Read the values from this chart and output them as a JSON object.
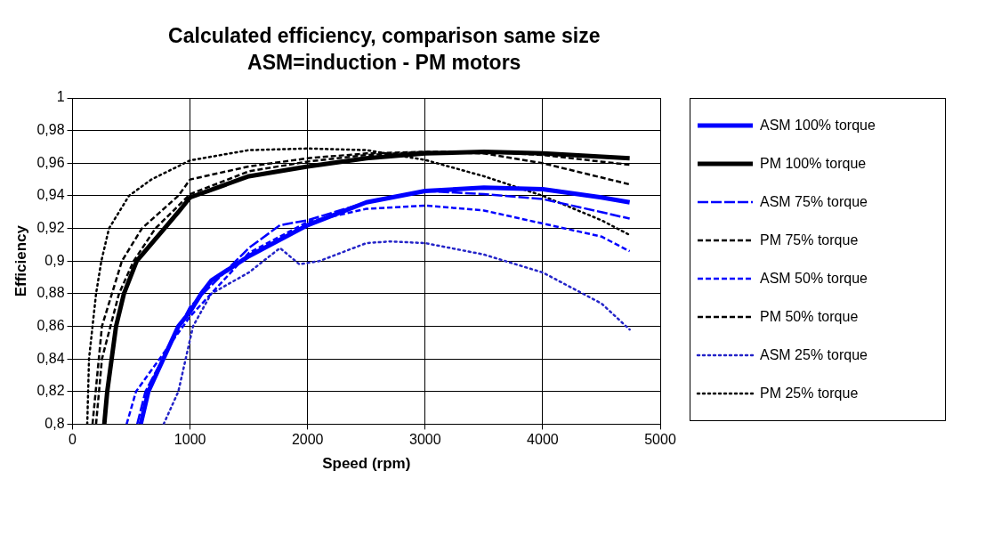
{
  "chart_data": {
    "type": "line",
    "title": "Calculated efficiency, comparison same size\nASM=induction - PM motors",
    "xlabel": "Speed (rpm)",
    "ylabel": "Efficiency",
    "xlim": [
      0,
      5000
    ],
    "xticks": [
      0,
      1000,
      2000,
      3000,
      4000,
      5000
    ],
    "ylim": [
      0.8,
      1
    ],
    "yticks": [
      {
        "value": 0.8,
        "label": "0,8"
      },
      {
        "value": 0.82,
        "label": "0,82"
      },
      {
        "value": 0.84,
        "label": "0,84"
      },
      {
        "value": 0.86,
        "label": "0,86"
      },
      {
        "value": 0.88,
        "label": "0,88"
      },
      {
        "value": 0.9,
        "label": "0,9"
      },
      {
        "value": 0.92,
        "label": "0,92"
      },
      {
        "value": 0.94,
        "label": "0,94"
      },
      {
        "value": 0.96,
        "label": "0,96"
      },
      {
        "value": 0.98,
        "label": "0,98"
      },
      {
        "value": 1,
        "label": "1"
      }
    ],
    "grid": true,
    "legend": "right",
    "marker": "none",
    "series": [
      {
        "name": "ASM 100% torque",
        "color": "#0000ff",
        "line_style": "solid",
        "x": [
          580,
          645,
          900,
          1000,
          1095,
          1180,
          1500,
          2000,
          2500,
          3000,
          3500,
          4000,
          4500,
          4740
        ],
        "values": [
          0.8,
          0.82,
          0.86,
          0.869,
          0.88,
          0.888,
          0.903,
          0.922,
          0.936,
          0.943,
          0.945,
          0.944,
          0.939,
          0.936
        ]
      },
      {
        "name": "PM 100% torque",
        "color": "#000000",
        "line_style": "solid",
        "x": [
          270,
          295,
          370,
          437,
          546,
          900,
          1000,
          1500,
          2000,
          2500,
          3000,
          3500,
          4000,
          4740
        ],
        "values": [
          0.8,
          0.82,
          0.86,
          0.88,
          0.9,
          0.93,
          0.939,
          0.952,
          0.958,
          0.963,
          0.966,
          0.967,
          0.966,
          0.963
        ]
      },
      {
        "name": "ASM 75% torque",
        "color": "#0000ff",
        "line_style": "dashed",
        "x": [
          550,
          620,
          1000,
          1500,
          1765,
          2000,
          2500,
          3000,
          3500,
          4000,
          4500,
          4740
        ],
        "values": [
          0.8,
          0.82,
          0.872,
          0.908,
          0.922,
          0.925,
          0.936,
          0.943,
          0.941,
          0.938,
          0.93,
          0.926
        ]
      },
      {
        "name": "PM 75% torque",
        "color": "#000000",
        "line_style": "dashed",
        "x": [
          200,
          250,
          395,
          520,
          705,
          1000,
          1500,
          2000,
          2500,
          3000,
          3500,
          4000,
          4740
        ],
        "values": [
          0.8,
          0.84,
          0.88,
          0.9,
          0.92,
          0.941,
          0.955,
          0.961,
          0.965,
          0.967,
          0.967,
          0.965,
          0.959
        ]
      },
      {
        "name": "ASM 50% torque",
        "color": "#0000ff",
        "line_style": "dashed",
        "x": [
          460,
          540,
          1000,
          1500,
          2000,
          2500,
          3000,
          3500,
          4000,
          4500,
          4740
        ],
        "values": [
          0.8,
          0.82,
          0.866,
          0.905,
          0.924,
          0.932,
          0.934,
          0.931,
          0.923,
          0.915,
          0.906
        ]
      },
      {
        "name": "PM 50% torque",
        "color": "#000000",
        "line_style": "dashed",
        "x": [
          170,
          250,
          420,
          590,
          900,
          1000,
          1500,
          2000,
          2500,
          3000,
          3500,
          4000,
          4740
        ],
        "values": [
          0.8,
          0.86,
          0.9,
          0.92,
          0.94,
          0.95,
          0.958,
          0.963,
          0.966,
          0.967,
          0.966,
          0.96,
          0.947
        ]
      },
      {
        "name": "ASM 25% torque",
        "color": "#2424c8",
        "line_style": "dotted",
        "x": [
          775,
          900,
          1025,
          1180,
          1500,
          1765,
          1930,
          2100,
          2500,
          2700,
          3000,
          3500,
          4000,
          4500,
          4740
        ],
        "values": [
          0.8,
          0.82,
          0.86,
          0.88,
          0.893,
          0.908,
          0.898,
          0.9,
          0.911,
          0.912,
          0.911,
          0.904,
          0.893,
          0.874,
          0.858
        ]
      },
      {
        "name": "PM 25% torque",
        "color": "#000000",
        "line_style": "dotted",
        "x": [
          125,
          140,
          200,
          245,
          310,
          480,
          670,
          1000,
          1500,
          2000,
          2500,
          3000,
          3500,
          4000,
          4500,
          4740
        ],
        "values": [
          0.8,
          0.84,
          0.88,
          0.9,
          0.92,
          0.94,
          0.95,
          0.9617,
          0.968,
          0.969,
          0.968,
          0.962,
          0.952,
          0.94,
          0.925,
          0.916
        ]
      }
    ]
  }
}
